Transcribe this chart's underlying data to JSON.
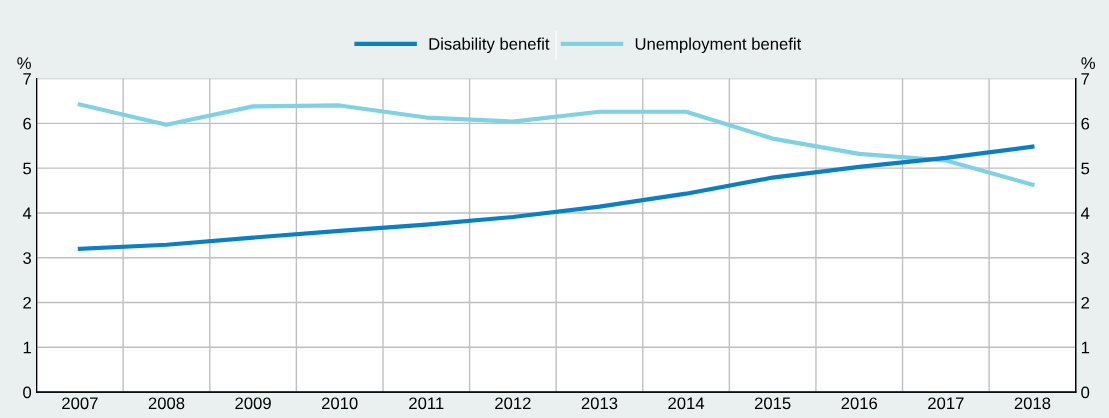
{
  "chart_data": {
    "type": "line",
    "categories": [
      "2007",
      "2008",
      "2009",
      "2010",
      "2011",
      "2012",
      "2013",
      "2014",
      "2015",
      "2016",
      "2017",
      "2018"
    ],
    "series": [
      {
        "name": "Unemployment benefit",
        "color": "#7fd1e3",
        "values": [
          6.42,
          5.97,
          6.38,
          6.4,
          6.13,
          6.04,
          6.26,
          6.26,
          5.66,
          5.32,
          5.17,
          4.63
        ]
      },
      {
        "name": "Disability benefit",
        "color": "#0a7fc6",
        "values": [
          3.2,
          3.29,
          3.45,
          3.6,
          3.74,
          3.91,
          4.14,
          4.43,
          4.79,
          5.03,
          5.23,
          5.48
        ]
      }
    ],
    "ylabel": "%",
    "y2label": "%",
    "ylim": [
      0,
      7
    ],
    "yticks": [
      0,
      1,
      2,
      3,
      4,
      5,
      6,
      7
    ],
    "y2lim": [
      0,
      7
    ],
    "y2ticks": [
      0,
      1,
      2,
      3,
      4,
      5,
      6,
      7
    ],
    "grid": true,
    "legend": "top",
    "marker": "none",
    "line_style": "solid"
  }
}
